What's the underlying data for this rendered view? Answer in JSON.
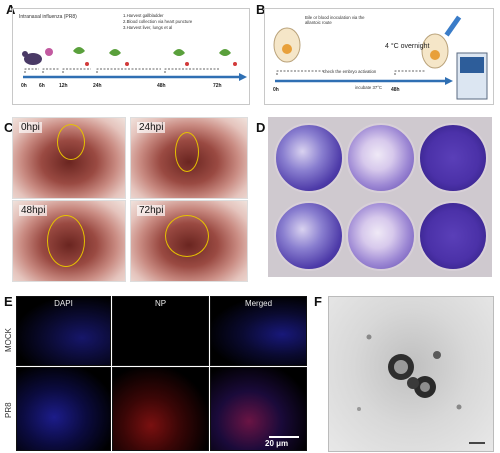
{
  "panels": {
    "a": {
      "label": "A",
      "title": "Intranasal influenza (PR8)",
      "steps": [
        "1.Harvest gallbladder",
        "2.Blood collection via heart puncture",
        "3.Harvest liver, lungs et al"
      ],
      "times": [
        "0h",
        "6h",
        "12h",
        "24h",
        "48h",
        "72h"
      ]
    },
    "b": {
      "label": "B",
      "note": "Bile or blood inoculation via the allantoic route",
      "temp_label": "4 °C overnight",
      "check_label": "check the embryo activation",
      "incubate_label": "incubate 37°C",
      "times": [
        "0h",
        "48h"
      ]
    },
    "c": {
      "label": "C",
      "photos": [
        "0hpi",
        "24hpi",
        "48hpi",
        "72hpi"
      ]
    },
    "d": {
      "label": "D"
    },
    "e": {
      "label": "E",
      "columns": [
        "DAPI",
        "NP",
        "Merged"
      ],
      "rows": [
        "MOCK",
        "PR8"
      ],
      "scale": "20 μm"
    },
    "f": {
      "label": "F"
    }
  },
  "colors": {
    "timeline_blue": "#2f6fb3",
    "ring_yellow": "#e6c200",
    "stain_purple": "#4d3aa8"
  }
}
